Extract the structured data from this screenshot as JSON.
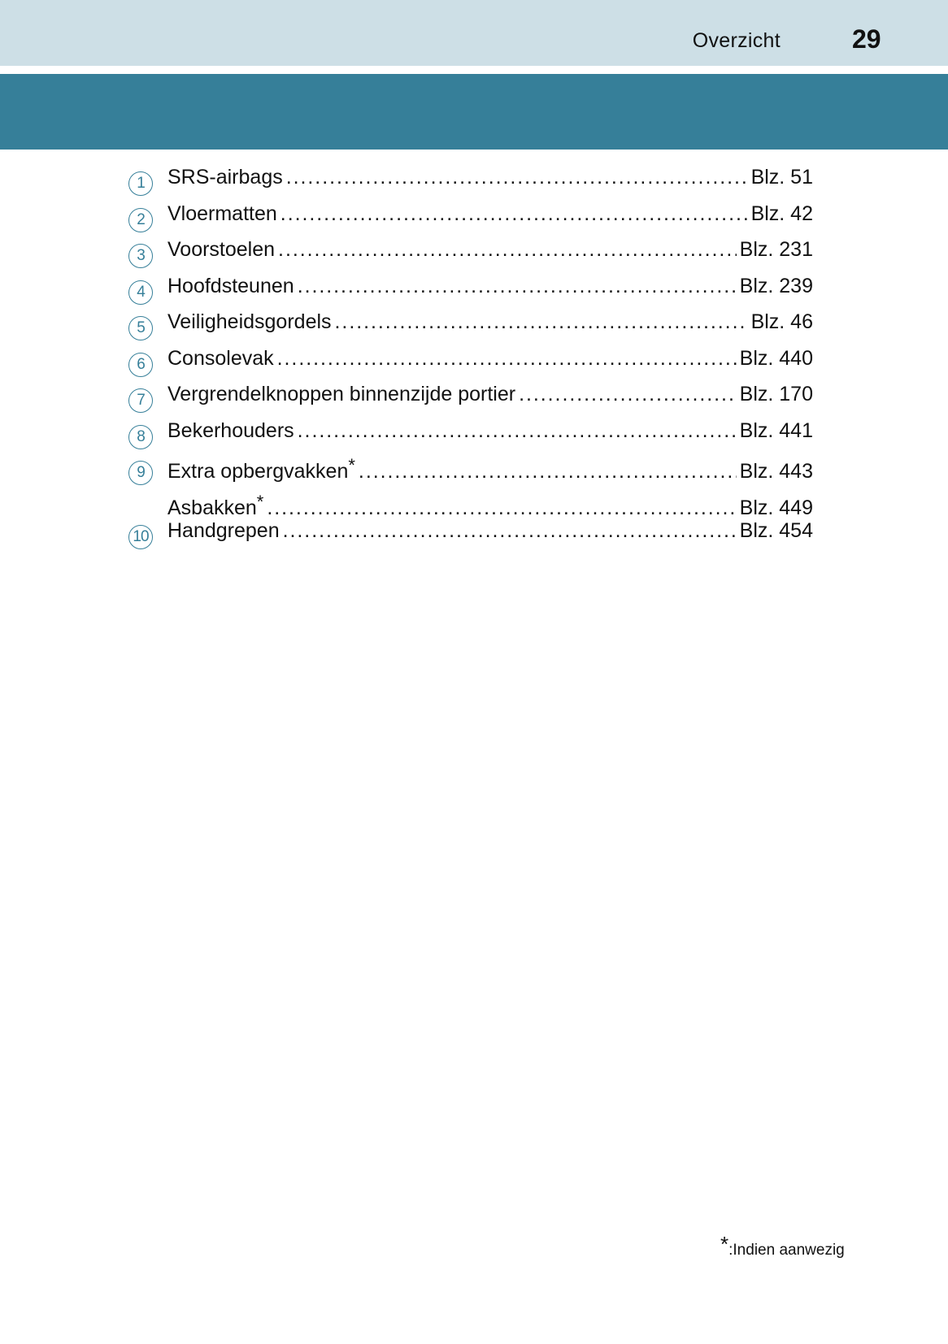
{
  "header": {
    "section": "Overzicht",
    "page_number": "29",
    "band_color": "#cddfe6",
    "accent_color": "#367f99"
  },
  "items": [
    {
      "num": "1",
      "label": "SRS-airbags",
      "page": "Blz. 51"
    },
    {
      "num": "2",
      "label": "Vloermatten",
      "page": "Blz. 42"
    },
    {
      "num": "3",
      "label": "Voorstoelen",
      "page": "Blz. 231"
    },
    {
      "num": "4",
      "label": "Hoofdsteunen",
      "page": "Blz. 239"
    },
    {
      "num": "5",
      "label": "Veiligheidsgordels",
      "page": "Blz. 46"
    },
    {
      "num": "6",
      "label": "Consolevak",
      "page": "Blz. 440"
    },
    {
      "num": "7",
      "label": "Vergrendelknoppen binnenzijde portier",
      "page": "Blz. 170"
    },
    {
      "num": "8",
      "label": "Bekerhouders",
      "page": "Blz. 441"
    },
    {
      "num": "9",
      "label": "Extra opbergvakken",
      "star": "*",
      "page": "Blz. 443"
    },
    {
      "num": "",
      "label": "Asbakken",
      "star": "*",
      "page": "Blz. 449"
    },
    {
      "num": "10",
      "label": "Handgrepen",
      "page": "Blz. 454"
    }
  ],
  "footnote": {
    "star": "*",
    "text": ":Indien aanwezig"
  }
}
